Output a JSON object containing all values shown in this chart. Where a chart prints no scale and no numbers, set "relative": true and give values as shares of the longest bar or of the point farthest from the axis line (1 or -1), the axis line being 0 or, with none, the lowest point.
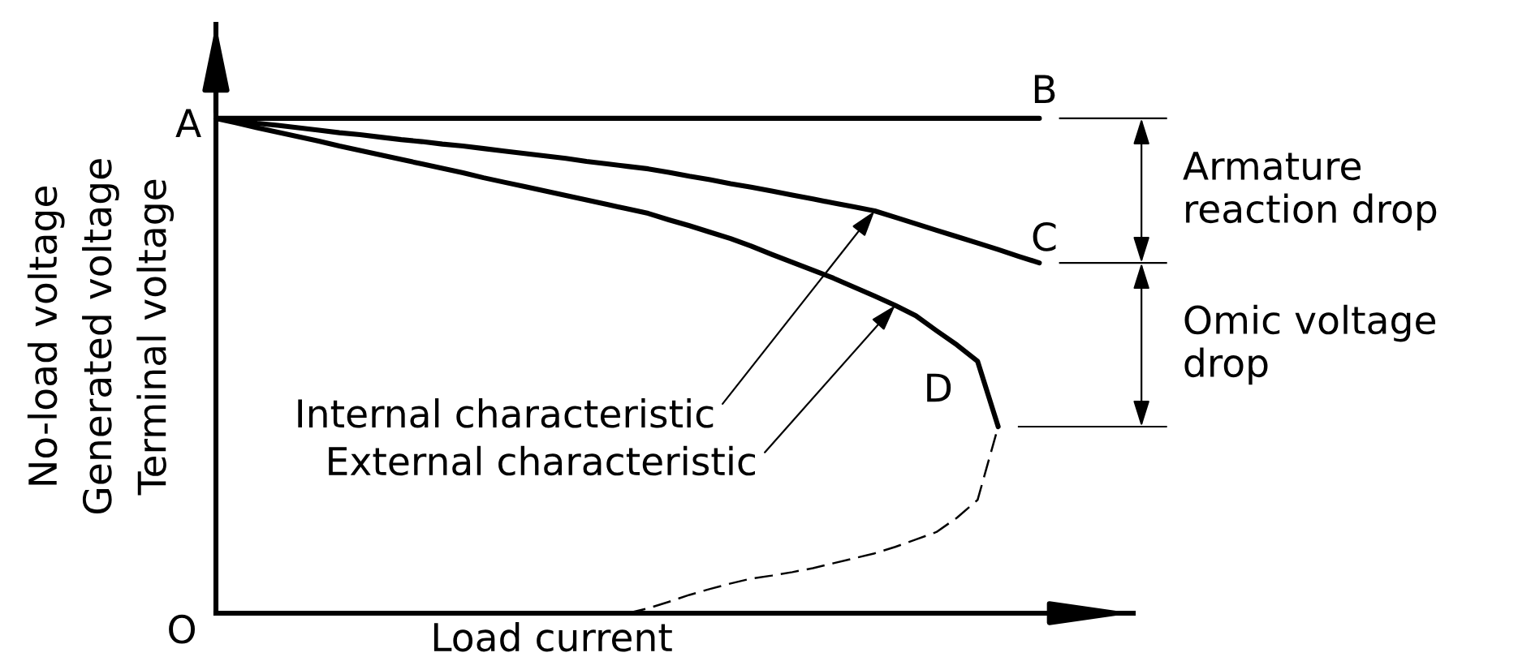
{
  "chart_data": {
    "type": "line",
    "relative": true,
    "line_style": "solid",
    "xlabel": "Load current",
    "ylabel": "No-load voltage\nGenerated voltage\nTerminal voltage",
    "categories": [
      null,
      null,
      null,
      null,
      null,
      null,
      null,
      null,
      null,
      null,
      null,
      null,
      null,
      null,
      null,
      null,
      null,
      null,
      null,
      null,
      null,
      null,
      null,
      null,
      null,
      null,
      null,
      null,
      null,
      null,
      null,
      null,
      null,
      null,
      null,
      null,
      null,
      null,
      null,
      null,
      null
    ],
    "series": [
      {
        "color": "#000000",
        "values": [
          1.0,
          1.0,
          1.0,
          1.0,
          1.0,
          1.0,
          1.0,
          1.0,
          1.0,
          1.0,
          1.0,
          1.0,
          1.0,
          1.0,
          1.0,
          1.0,
          1.0,
          1.0,
          1.0,
          1.0,
          1.0,
          1.0,
          1.0,
          1.0,
          1.0,
          1.0,
          1.0,
          1.0,
          1.0,
          1.0,
          1.0,
          1.0,
          1.0,
          1.0,
          1.0,
          1.0,
          1.0,
          1.0,
          1.0,
          1.0,
          1.0
        ]
      },
      {
        "color": "#000000",
        "values": [
          1.0,
          0.995,
          0.99,
          0.986,
          0.981,
          0.976,
          0.971,
          0.967,
          0.962,
          0.957,
          0.953,
          0.948,
          0.944,
          0.939,
          0.934,
          0.929,
          0.924,
          0.919,
          0.913,
          0.908,
          0.903,
          0.898,
          0.891,
          0.883,
          0.876,
          0.868,
          0.861,
          0.853,
          0.845,
          0.837,
          0.829,
          0.821,
          0.813,
          0.8,
          0.787,
          0.774,
          0.761,
          0.748,
          0.735,
          0.721,
          0.708
        ]
      },
      {
        "color": "#000000",
        "values": [
          1.0,
          0.991,
          0.981,
          0.972,
          0.963,
          0.954,
          0.944,
          0.935,
          0.926,
          0.917,
          0.908,
          0.899,
          0.89,
          0.88,
          0.871,
          0.862,
          0.853,
          0.844,
          0.835,
          0.826,
          0.817,
          0.808,
          0.795,
          0.783,
          0.77,
          0.757,
          0.742,
          0.725,
          0.709,
          0.693,
          0.677,
          0.659,
          0.641,
          0.622,
          0.601,
          0.571,
          0.542,
          0.509,
          0.377,
          null,
          null
        ]
      },
      {
        "color": "#000000",
        "line_style": "dashed",
        "values": [
          null,
          null,
          null,
          null,
          null,
          null,
          null,
          null,
          null,
          null,
          null,
          null,
          null,
          null,
          null,
          null,
          null,
          null,
          null,
          null,
          0.0,
          0.01,
          0.023,
          0.037,
          0.049,
          0.06,
          0.07,
          0.076,
          0.083,
          0.091,
          0.101,
          0.111,
          0.121,
          0.134,
          0.149,
          0.164,
          0.193,
          0.229,
          0.377,
          null,
          null
        ]
      }
    ],
    "annotations": [
      "A",
      "B",
      "C",
      "D",
      "O",
      "Internal characteristic",
      "External characteristic",
      "Armature\nreaction drop",
      "Omic voltage\ndrop"
    ]
  }
}
